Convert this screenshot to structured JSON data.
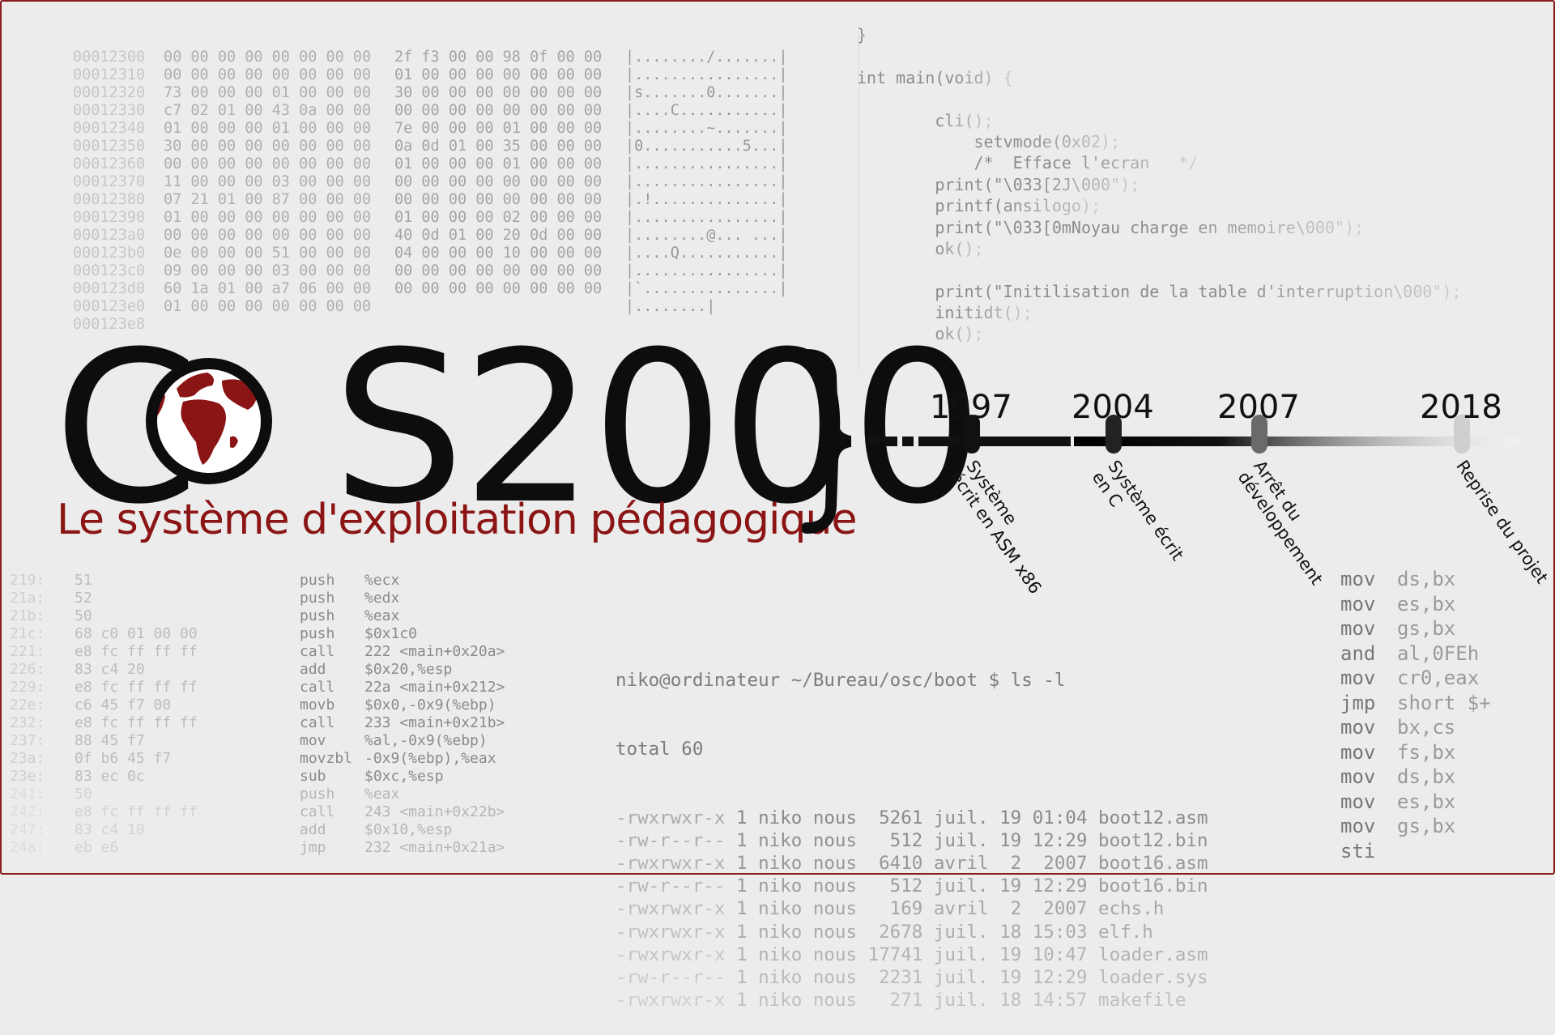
{
  "hexdump": [
    {
      "addr": "00012300",
      "b1": "00 00 00 00 00 00 00 00",
      "b2": "2f f3 00 00 98 0f 00 00",
      "ascii": "|......../.......|"
    },
    {
      "addr": "00012310",
      "b1": "00 00 00 00 00 00 00 00",
      "b2": "01 00 00 00 00 00 00 00",
      "ascii": "|................|"
    },
    {
      "addr": "00012320",
      "b1": "73 00 00 00 01 00 00 00",
      "b2": "30 00 00 00 00 00 00 00",
      "ascii": "|s.......0.......|"
    },
    {
      "addr": "00012330",
      "b1": "c7 02 01 00 43 0a 00 00",
      "b2": "00 00 00 00 00 00 00 00",
      "ascii": "|....C...........|"
    },
    {
      "addr": "00012340",
      "b1": "01 00 00 00 01 00 00 00",
      "b2": "7e 00 00 00 01 00 00 00",
      "ascii": "|........~.......|"
    },
    {
      "addr": "00012350",
      "b1": "30 00 00 00 00 00 00 00",
      "b2": "0a 0d 01 00 35 00 00 00",
      "ascii": "|0...........5...|"
    },
    {
      "addr": "00012360",
      "b1": "00 00 00 00 00 00 00 00",
      "b2": "01 00 00 00 01 00 00 00",
      "ascii": "|................|"
    },
    {
      "addr": "00012370",
      "b1": "11 00 00 00 03 00 00 00",
      "b2": "00 00 00 00 00 00 00 00",
      "ascii": "|................|"
    },
    {
      "addr": "00012380",
      "b1": "07 21 01 00 87 00 00 00",
      "b2": "00 00 00 00 00 00 00 00",
      "ascii": "|.!..............|"
    },
    {
      "addr": "00012390",
      "b1": "01 00 00 00 00 00 00 00",
      "b2": "01 00 00 00 02 00 00 00",
      "ascii": "|................|"
    },
    {
      "addr": "000123a0",
      "b1": "00 00 00 00 00 00 00 00",
      "b2": "40 0d 01 00 20 0d 00 00",
      "ascii": "|........@... ...|"
    },
    {
      "addr": "000123b0",
      "b1": "0e 00 00 00 51 00 00 00",
      "b2": "04 00 00 00 10 00 00 00",
      "ascii": "|....Q...........|"
    },
    {
      "addr": "000123c0",
      "b1": "09 00 00 00 03 00 00 00",
      "b2": "00 00 00 00 00 00 00 00",
      "ascii": "|................|"
    },
    {
      "addr": "000123d0",
      "b1": "60 1a 01 00 a7 06 00 00",
      "b2": "00 00 00 00 00 00 00 00",
      "ascii": "|`...............|"
    },
    {
      "addr": "000123e0",
      "b1": "01 00 00 00 00 00 00 00",
      "b2": "",
      "ascii": "|........|"
    },
    {
      "addr": "000123e8",
      "b1": "",
      "b2": "",
      "ascii": ""
    }
  ],
  "c_code": [
    "}",
    "",
    "int main(void) {",
    "",
    "        cli();",
    "            setvmode(0x02);",
    "            /*  Efface l'ecran   */",
    "        print(\"\\033[2J\\000\");",
    "        printf(ansilogo);",
    "        print(\"\\033[0mNoyau charge en memoire\\000\");",
    "        ok();",
    "",
    "        print(\"Initilisation de la table d'interruption\\000\");",
    "        initidt();",
    "        ok();"
  ],
  "logo": {
    "c": "C",
    "o": "O",
    "rest": "S2000",
    "subtitle": "Le système d'exploitation pédagogique",
    "globe_ocean": "#ffffff",
    "globe_land": "#8b1414",
    "brand_color": "#8b1414"
  },
  "timeline": [
    {
      "year": "1997",
      "label": "Système\nécrit en ASM x86",
      "color": "#111111"
    },
    {
      "year": "2004",
      "label": "Système écrit\nen C",
      "color": "#222222"
    },
    {
      "year": "2007",
      "label": "Arrêt du\ndéveloppement",
      "color": "#6a6a6a"
    },
    {
      "year": "2018",
      "label": "Reprise du projet",
      "color": "#cfcfcf"
    }
  ],
  "disasm": [
    {
      "a": "219:",
      "b": "51",
      "m": "push",
      "o": "%ecx"
    },
    {
      "a": "21a:",
      "b": "52",
      "m": "push",
      "o": "%edx"
    },
    {
      "a": "21b:",
      "b": "50",
      "m": "push",
      "o": "%eax"
    },
    {
      "a": "21c:",
      "b": "68 c0 01 00 00",
      "m": "push",
      "o": "$0x1c0"
    },
    {
      "a": "221:",
      "b": "e8 fc ff ff ff",
      "m": "call",
      "o": "222 <main+0x20a>"
    },
    {
      "a": "226:",
      "b": "83 c4 20",
      "m": "add",
      "o": "$0x20,%esp"
    },
    {
      "a": "229:",
      "b": "e8 fc ff ff ff",
      "m": "call",
      "o": "22a <main+0x212>"
    },
    {
      "a": "22e:",
      "b": "c6 45 f7 00",
      "m": "movb",
      "o": "$0x0,-0x9(%ebp)"
    },
    {
      "a": "232:",
      "b": "e8 fc ff ff ff",
      "m": "call",
      "o": "233 <main+0x21b>"
    },
    {
      "a": "237:",
      "b": "88 45 f7",
      "m": "mov",
      "o": "%al,-0x9(%ebp)"
    },
    {
      "a": "23a:",
      "b": "0f b6 45 f7",
      "m": "movzbl",
      "o": "-0x9(%ebp),%eax"
    },
    {
      "a": "23e:",
      "b": "83 ec 0c",
      "m": "sub",
      "o": "$0xc,%esp"
    },
    {
      "a": "241:",
      "b": "50",
      "m": "push",
      "o": "%eax"
    },
    {
      "a": "242:",
      "b": "e8 fc ff ff ff",
      "m": "call",
      "o": "243 <main+0x22b>"
    },
    {
      "a": "247:",
      "b": "83 c4 10",
      "m": "add",
      "o": "$0x10,%esp"
    },
    {
      "a": "24a:",
      "b": "eb e6",
      "m": "jmp",
      "o": "232 <main+0x21a>"
    }
  ],
  "terminal": {
    "prompt": "niko@ordinateur ~/Bureau/osc/boot $ ls -l",
    "total": "total 60",
    "rows": [
      {
        "p": "-rwxrwxr-x",
        "r": " 1 niko nous  5261 juil. 19 01:04 boot12.asm"
      },
      {
        "p": "-rw-r--r--",
        "r": " 1 niko nous   512 juil. 19 12:29 boot12.bin"
      },
      {
        "p": "-rwxrwxr-x",
        "r": " 1 niko nous  6410 avril  2  2007 boot16.asm"
      },
      {
        "p": "-rw-r--r--",
        "r": " 1 niko nous   512 juil. 19 12:29 boot16.bin"
      },
      {
        "p": "-rwxrwxr-x",
        "r": " 1 niko nous   169 avril  2  2007 echs.h"
      },
      {
        "p": "-rwxrwxr-x",
        "r": " 1 niko nous  2678 juil. 18 15:03 elf.h"
      },
      {
        "p": "-rwxrwxr-x",
        "r": " 1 niko nous 17741 juil. 19 10:47 loader.asm"
      },
      {
        "p": "-rw-r--r--",
        "r": " 1 niko nous  2231 juil. 19 12:29 loader.sys"
      },
      {
        "p": "-rwxrwxr-x",
        "r": " 1 niko nous   271 juil. 18 14:57 makefile"
      }
    ]
  },
  "asm": [
    {
      "op": "mov",
      "arg": "ds,bx"
    },
    {
      "op": "mov",
      "arg": "es,bx"
    },
    {
      "op": "mov",
      "arg": "gs,bx"
    },
    {
      "op": "and",
      "arg": "al,0FEh"
    },
    {
      "op": "mov",
      "arg": "cr0,eax"
    },
    {
      "op": "jmp",
      "arg": "short $+"
    },
    {
      "op": "mov",
      "arg": "bx,cs"
    },
    {
      "op": "mov",
      "arg": "fs,bx"
    },
    {
      "op": "mov",
      "arg": "ds,bx"
    },
    {
      "op": "mov",
      "arg": "es,bx"
    },
    {
      "op": "mov",
      "arg": "gs,bx"
    },
    {
      "op": "sti",
      "arg": ""
    }
  ]
}
